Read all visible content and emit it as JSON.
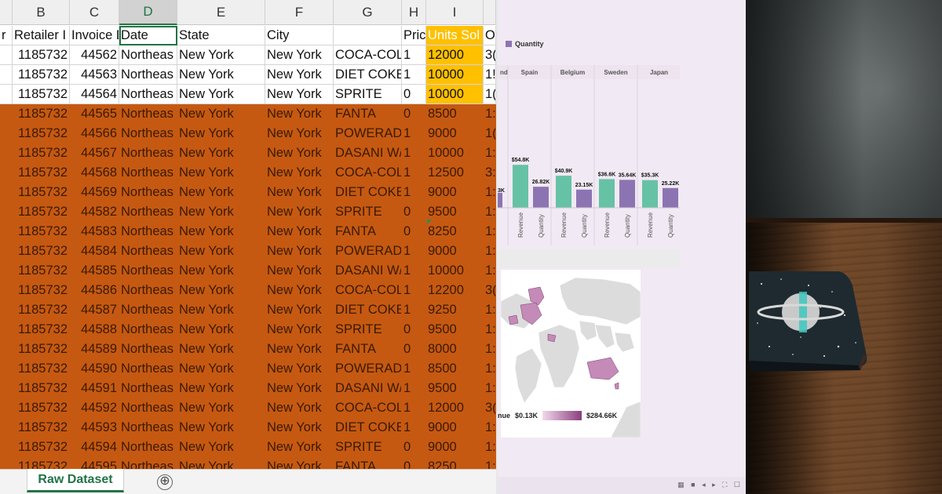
{
  "spreadsheet": {
    "columns": [
      {
        "letter": "",
        "header": "r"
      },
      {
        "letter": "B",
        "header": "Retailer I"
      },
      {
        "letter": "C",
        "header": "Invoice D"
      },
      {
        "letter": "D",
        "header": "Date"
      },
      {
        "letter": "E",
        "header": "State"
      },
      {
        "letter": "F",
        "header": "City"
      },
      {
        "letter": "G",
        "header": ""
      },
      {
        "letter": "H",
        "header": "Pric"
      },
      {
        "letter": "I",
        "header": "Units Sol"
      },
      {
        "letter": "",
        "header": "O"
      }
    ],
    "rows": [
      [
        "1185732",
        "44562",
        "Northeas",
        "New York",
        "New York",
        "COCA-COL/",
        "1",
        "12000",
        "3("
      ],
      [
        "1185732",
        "44563",
        "Northeas",
        "New York",
        "New York",
        "DIET COKE",
        "1",
        "10000",
        "1!"
      ],
      [
        "1185732",
        "44564",
        "Northeas",
        "New York",
        "New York",
        "SPRITE",
        "0",
        "10000",
        "1("
      ],
      [
        "1185732",
        "44565",
        "Northeas",
        "New York",
        "New York",
        "FANTA",
        "0",
        "8500",
        "1:"
      ],
      [
        "1185732",
        "44566",
        "Northeas",
        "New York",
        "New York",
        "POWERADI",
        "1",
        "9000",
        "1("
      ],
      [
        "1185732",
        "44567",
        "Northeas",
        "New York",
        "New York",
        "DASANI W/",
        "1",
        "10000",
        "1:"
      ],
      [
        "1185732",
        "44568",
        "Northeas",
        "New York",
        "New York",
        "COCA-COL/",
        "1",
        "12500",
        "3:"
      ],
      [
        "1185732",
        "44569",
        "Northeas",
        "New York",
        "New York",
        "DIET COKE",
        "1",
        "9000",
        "1:"
      ],
      [
        "1185732",
        "44582",
        "Northeas",
        "New York",
        "New York",
        "SPRITE",
        "0",
        "9500",
        "1:"
      ],
      [
        "1185732",
        "44583",
        "Northeas",
        "New York",
        "New York",
        "FANTA",
        "0",
        "8250",
        "1:"
      ],
      [
        "1185732",
        "44584",
        "Northeas",
        "New York",
        "New York",
        "POWERADI",
        "1",
        "9000",
        "1:"
      ],
      [
        "1185732",
        "44585",
        "Northeas",
        "New York",
        "New York",
        "DASANI W/",
        "1",
        "10000",
        "1:"
      ],
      [
        "1185732",
        "44586",
        "Northeas",
        "New York",
        "New York",
        "COCA-COL/",
        "1",
        "12200",
        "3("
      ],
      [
        "1185732",
        "44587",
        "Northeas",
        "New York",
        "New York",
        "DIET COKE",
        "1",
        "9250",
        "1:"
      ],
      [
        "1185732",
        "44588",
        "Northeas",
        "New York",
        "New York",
        "SPRITE",
        "0",
        "9500",
        "1:"
      ],
      [
        "1185732",
        "44589",
        "Northeas",
        "New York",
        "New York",
        "FANTA",
        "0",
        "8000",
        "1:"
      ],
      [
        "1185732",
        "44590",
        "Northeas",
        "New York",
        "New York",
        "POWERADI",
        "1",
        "8500",
        "1:"
      ],
      [
        "1185732",
        "44591",
        "Northeas",
        "New York",
        "New York",
        "DASANI W/",
        "1",
        "9500",
        "1:"
      ],
      [
        "1185732",
        "44592",
        "Northeas",
        "New York",
        "New York",
        "COCA-COL/",
        "1",
        "12000",
        "3("
      ],
      [
        "1185732",
        "44593",
        "Northeas",
        "New York",
        "New York",
        "DIET COKE",
        "1",
        "9000",
        "1:"
      ],
      [
        "1185732",
        "44594",
        "Northeas",
        "New York",
        "New York",
        "SPRITE",
        "0",
        "9000",
        "1:"
      ],
      [
        "1185732",
        "44595",
        "Northeas",
        "New York",
        "New York",
        "FANTA",
        "0",
        "8250",
        "1:"
      ]
    ],
    "sheet_tab": "Raw Dataset",
    "add_sheet_icon": "⊕",
    "colors": {
      "highlight_rows": "#c65911",
      "units_highlight": "#ffc000",
      "excel_green": "#217346"
    }
  },
  "dashboard": {
    "legend_label": "Quantity",
    "map_legend_prefix": "nue",
    "map_legend_min": "$0.13K",
    "map_legend_max": "$284.66K",
    "footer_icons": "▦ ■ ◂ ▸ ⛶ ☐",
    "colors": {
      "revenue": "#66c2a5",
      "quantity": "#8c74b3"
    }
  },
  "chart_data": {
    "type": "bar",
    "title": "",
    "categories": [
      "Spain",
      "Belgium",
      "Sweden",
      "Japan"
    ],
    "partial_left_header": "nd",
    "partial_left_value_label": "3K",
    "series": [
      {
        "name": "Revenue",
        "values": [
          54800,
          40900,
          36600,
          35300
        ],
        "labels": [
          "$54.8K",
          "$40.9K",
          "$36.6K",
          "$35.3K"
        ]
      },
      {
        "name": "Quantity",
        "values": [
          26820,
          23150,
          35640,
          25220
        ],
        "labels": [
          "26.82K",
          "23.15K",
          "35.64K",
          "25.22K"
        ]
      }
    ],
    "measure_labels": [
      "Revenue",
      "Quantity"
    ],
    "ylim": [
      0,
      70000
    ],
    "grid": false,
    "legend_position": "top-left"
  },
  "photo": {
    "subject": "starry planet notebook on wooden desk"
  }
}
